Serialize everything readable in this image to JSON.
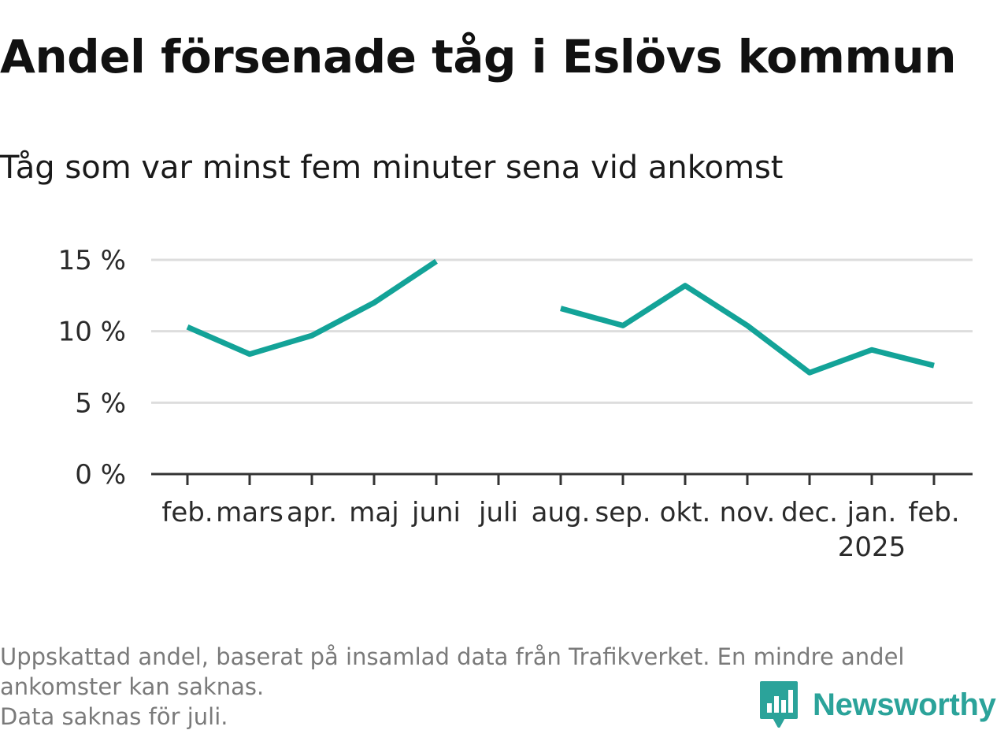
{
  "title": "Andel försenade tåg i Eslövs kommun",
  "subtitle": "Tåg som var minst fem minuter sena vid ankomst",
  "footnote": {
    "line1": "Uppskattad andel, baserat på insamlad data från Trafikverket. En mindre andel",
    "line2": "ankomster kan saknas.",
    "line3": "Data saknas för juli."
  },
  "brand": {
    "name": "Newsworthy",
    "color": "#2ba39a",
    "icon": "bar-chart-speech-bubble-icon"
  },
  "chart_data": {
    "type": "line",
    "title": "Andel försenade tåg i Eslövs kommun",
    "subtitle": "Tåg som var minst fem minuter sena vid ankomst",
    "categories": [
      "feb.",
      "mars",
      "apr.",
      "maj",
      "juni",
      "juli",
      "aug.",
      "sep.",
      "okt.",
      "nov.",
      "dec.",
      "jan.",
      "feb."
    ],
    "category_sublabels": [
      "",
      "",
      "",
      "",
      "",
      "",
      "",
      "",
      "",
      "",
      "",
      "2025",
      ""
    ],
    "series": [
      {
        "values": [
          10.3,
          8.4,
          9.7,
          12.0,
          14.9,
          null,
          11.6,
          10.4,
          13.2,
          10.4,
          7.1,
          8.7,
          7.6
        ]
      }
    ],
    "ylim": [
      0,
      15
    ],
    "yticks": [
      0,
      5,
      10,
      15
    ],
    "ytick_labels": [
      "0 %",
      "5 %",
      "10 %",
      "15 %"
    ],
    "grid": true,
    "line_color": "#13a398",
    "grid_color": "#dddddd",
    "axis_color": "#333333"
  }
}
